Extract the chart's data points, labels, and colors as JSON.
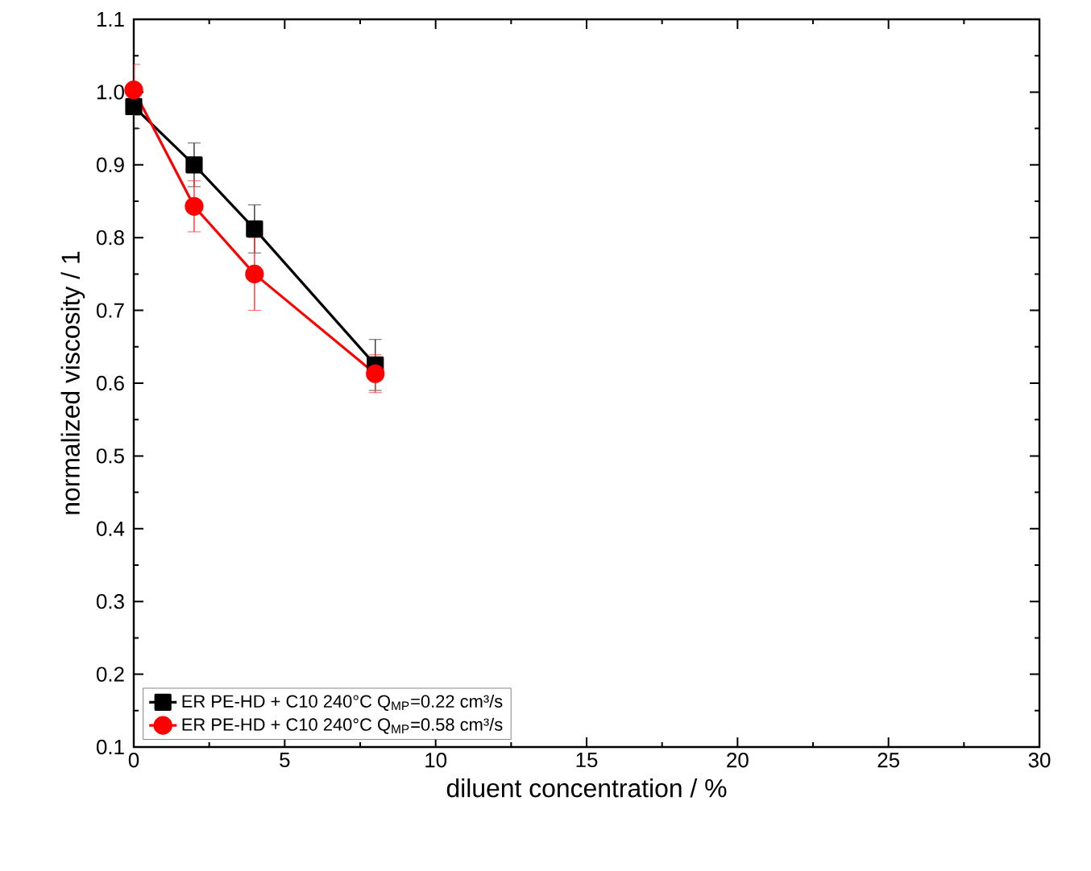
{
  "chart_data": {
    "type": "line",
    "xlabel": "diluent concentration / %",
    "ylabel": "normalized viscosity / 1",
    "x": [
      0,
      2,
      4,
      8
    ],
    "series": [
      {
        "name": "ER PE-HD + C10 240°C Q$_{MP}$=0.22 cm³/s",
        "color": "#000000",
        "marker": "square",
        "values": [
          0.98,
          0.9,
          0.812,
          0.625
        ],
        "errors": [
          0.03,
          0.03,
          0.033,
          0.035
        ]
      },
      {
        "name": "ER PE-HD + C10 240°C Q$_{MP}$=0.58 cm³/s",
        "color": "#ff0000",
        "marker": "circle",
        "values": [
          1.003,
          0.843,
          0.75,
          0.613
        ],
        "errors": [
          0.035,
          0.035,
          0.05,
          0.026
        ]
      }
    ],
    "xlim": [
      0,
      30
    ],
    "xticks": [
      0,
      5,
      10,
      15,
      20,
      25,
      30
    ],
    "ylim": [
      0.1,
      1.1
    ],
    "yticks": [
      0.1,
      0.2,
      0.3,
      0.4,
      0.5,
      0.6,
      0.7,
      0.8,
      0.9,
      {
        "value": 1.0,
        "label": "1.0"
      },
      1.1
    ],
    "grid": false,
    "legend": "bottom left",
    "line_style": "solid"
  }
}
